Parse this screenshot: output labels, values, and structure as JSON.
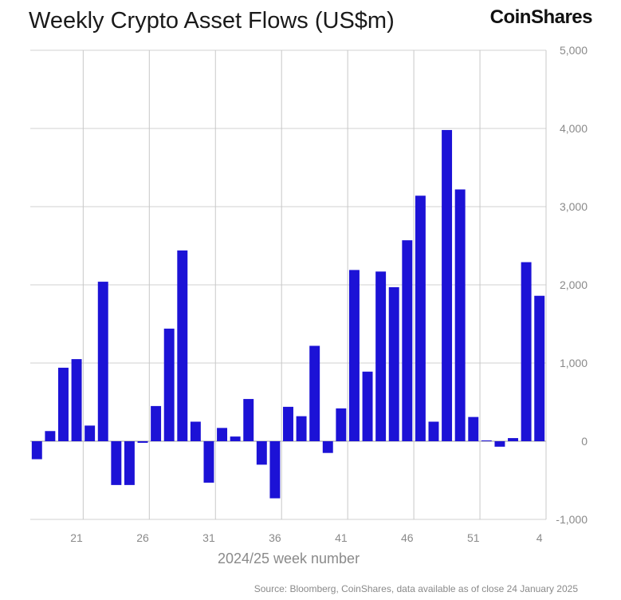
{
  "header": {
    "title": "Weekly Crypto Asset Flows (US$m)",
    "brand": "CoinShares"
  },
  "footer": {
    "source": "Source: Bloomberg, CoinShares, data available as of close 24 January 2025"
  },
  "chart_data": {
    "type": "bar",
    "title": "Weekly Crypto Asset Flows (US$m)",
    "xlabel": "2024/25 week number",
    "ylabel": "",
    "ylim": [
      -1000,
      5000
    ],
    "yticks": [
      -1000,
      0,
      1000,
      2000,
      3000,
      4000,
      5000
    ],
    "ytick_labels": [
      "-1,000",
      "0",
      "1,000",
      "2,000",
      "3,000",
      "4,000",
      "5,000"
    ],
    "y_axis_position": "right",
    "xtick_labels": [
      "21",
      "26",
      "31",
      "36",
      "41",
      "46",
      "51",
      "4"
    ],
    "grid": true,
    "bar_color": "#1c12d6",
    "categories": [
      "18",
      "19",
      "20",
      "21",
      "22",
      "23",
      "24",
      "25",
      "26",
      "27",
      "28",
      "29",
      "30",
      "31",
      "32",
      "33",
      "34",
      "35",
      "36",
      "37",
      "38",
      "39",
      "40",
      "41",
      "42",
      "43",
      "44",
      "45",
      "46",
      "47",
      "48",
      "49",
      "50",
      "51",
      "52",
      "1",
      "2",
      "3",
      "4"
    ],
    "values": [
      -230,
      130,
      940,
      1050,
      200,
      2040,
      -560,
      -560,
      -20,
      450,
      1440,
      2440,
      250,
      -530,
      170,
      60,
      540,
      -300,
      -730,
      440,
      320,
      1220,
      -150,
      420,
      2190,
      890,
      2170,
      1970,
      2570,
      3140,
      250,
      3980,
      3220,
      310,
      10,
      -70,
      40,
      2290,
      1860
    ]
  }
}
